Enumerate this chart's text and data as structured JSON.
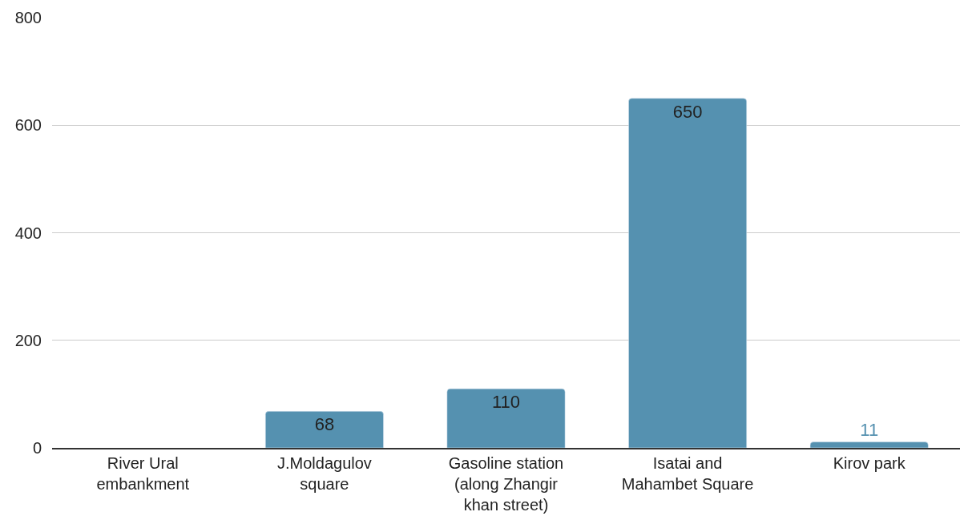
{
  "chart_data": {
    "type": "bar",
    "categories": [
      "River Ural embankment",
      "J.Moldagulov square",
      "Gasoline station (along Zhangir khan street)",
      "Isatai and Mahambet Square",
      "Kirov park"
    ],
    "values": [
      null,
      68,
      110,
      650,
      11
    ],
    "value_labels": [
      null,
      "68",
      "110",
      "650",
      "11"
    ],
    "color": "#5591b0",
    "ylim": [
      0,
      800
    ],
    "yticks": [
      0,
      200,
      400,
      600,
      800
    ],
    "grid": "y",
    "legend": false
  }
}
